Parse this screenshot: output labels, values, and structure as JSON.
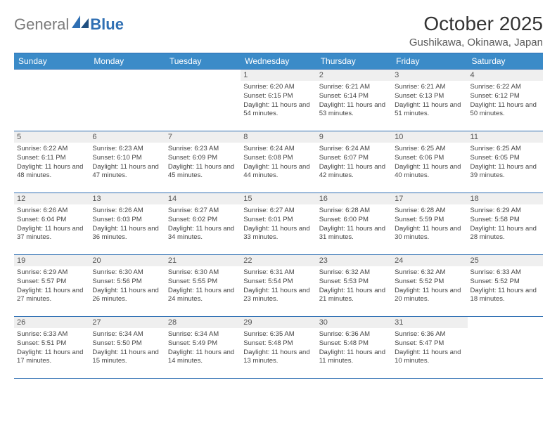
{
  "logo": {
    "part1": "General",
    "part2": "Blue"
  },
  "title": "October 2025",
  "location": "Gushikawa, Okinawa, Japan",
  "colors": {
    "header_bg": "#3b8bc8",
    "header_border": "#2f6fb3",
    "daynum_bg": "#efefef",
    "logo_gray": "#7a7a7a",
    "logo_blue": "#2f6fb3"
  },
  "weekdays": [
    "Sunday",
    "Monday",
    "Tuesday",
    "Wednesday",
    "Thursday",
    "Friday",
    "Saturday"
  ],
  "weeks": [
    [
      null,
      null,
      null,
      {
        "n": "1",
        "sr": "6:20 AM",
        "ss": "6:15 PM",
        "dl": "11 hours and 54 minutes."
      },
      {
        "n": "2",
        "sr": "6:21 AM",
        "ss": "6:14 PM",
        "dl": "11 hours and 53 minutes."
      },
      {
        "n": "3",
        "sr": "6:21 AM",
        "ss": "6:13 PM",
        "dl": "11 hours and 51 minutes."
      },
      {
        "n": "4",
        "sr": "6:22 AM",
        "ss": "6:12 PM",
        "dl": "11 hours and 50 minutes."
      }
    ],
    [
      {
        "n": "5",
        "sr": "6:22 AM",
        "ss": "6:11 PM",
        "dl": "11 hours and 48 minutes."
      },
      {
        "n": "6",
        "sr": "6:23 AM",
        "ss": "6:10 PM",
        "dl": "11 hours and 47 minutes."
      },
      {
        "n": "7",
        "sr": "6:23 AM",
        "ss": "6:09 PM",
        "dl": "11 hours and 45 minutes."
      },
      {
        "n": "8",
        "sr": "6:24 AM",
        "ss": "6:08 PM",
        "dl": "11 hours and 44 minutes."
      },
      {
        "n": "9",
        "sr": "6:24 AM",
        "ss": "6:07 PM",
        "dl": "11 hours and 42 minutes."
      },
      {
        "n": "10",
        "sr": "6:25 AM",
        "ss": "6:06 PM",
        "dl": "11 hours and 40 minutes."
      },
      {
        "n": "11",
        "sr": "6:25 AM",
        "ss": "6:05 PM",
        "dl": "11 hours and 39 minutes."
      }
    ],
    [
      {
        "n": "12",
        "sr": "6:26 AM",
        "ss": "6:04 PM",
        "dl": "11 hours and 37 minutes."
      },
      {
        "n": "13",
        "sr": "6:26 AM",
        "ss": "6:03 PM",
        "dl": "11 hours and 36 minutes."
      },
      {
        "n": "14",
        "sr": "6:27 AM",
        "ss": "6:02 PM",
        "dl": "11 hours and 34 minutes."
      },
      {
        "n": "15",
        "sr": "6:27 AM",
        "ss": "6:01 PM",
        "dl": "11 hours and 33 minutes."
      },
      {
        "n": "16",
        "sr": "6:28 AM",
        "ss": "6:00 PM",
        "dl": "11 hours and 31 minutes."
      },
      {
        "n": "17",
        "sr": "6:28 AM",
        "ss": "5:59 PM",
        "dl": "11 hours and 30 minutes."
      },
      {
        "n": "18",
        "sr": "6:29 AM",
        "ss": "5:58 PM",
        "dl": "11 hours and 28 minutes."
      }
    ],
    [
      {
        "n": "19",
        "sr": "6:29 AM",
        "ss": "5:57 PM",
        "dl": "11 hours and 27 minutes."
      },
      {
        "n": "20",
        "sr": "6:30 AM",
        "ss": "5:56 PM",
        "dl": "11 hours and 26 minutes."
      },
      {
        "n": "21",
        "sr": "6:30 AM",
        "ss": "5:55 PM",
        "dl": "11 hours and 24 minutes."
      },
      {
        "n": "22",
        "sr": "6:31 AM",
        "ss": "5:54 PM",
        "dl": "11 hours and 23 minutes."
      },
      {
        "n": "23",
        "sr": "6:32 AM",
        "ss": "5:53 PM",
        "dl": "11 hours and 21 minutes."
      },
      {
        "n": "24",
        "sr": "6:32 AM",
        "ss": "5:52 PM",
        "dl": "11 hours and 20 minutes."
      },
      {
        "n": "25",
        "sr": "6:33 AM",
        "ss": "5:52 PM",
        "dl": "11 hours and 18 minutes."
      }
    ],
    [
      {
        "n": "26",
        "sr": "6:33 AM",
        "ss": "5:51 PM",
        "dl": "11 hours and 17 minutes."
      },
      {
        "n": "27",
        "sr": "6:34 AM",
        "ss": "5:50 PM",
        "dl": "11 hours and 15 minutes."
      },
      {
        "n": "28",
        "sr": "6:34 AM",
        "ss": "5:49 PM",
        "dl": "11 hours and 14 minutes."
      },
      {
        "n": "29",
        "sr": "6:35 AM",
        "ss": "5:48 PM",
        "dl": "11 hours and 13 minutes."
      },
      {
        "n": "30",
        "sr": "6:36 AM",
        "ss": "5:48 PM",
        "dl": "11 hours and 11 minutes."
      },
      {
        "n": "31",
        "sr": "6:36 AM",
        "ss": "5:47 PM",
        "dl": "11 hours and 10 minutes."
      },
      null
    ]
  ],
  "labels": {
    "sunrise": "Sunrise:",
    "sunset": "Sunset:",
    "daylight": "Daylight:"
  }
}
